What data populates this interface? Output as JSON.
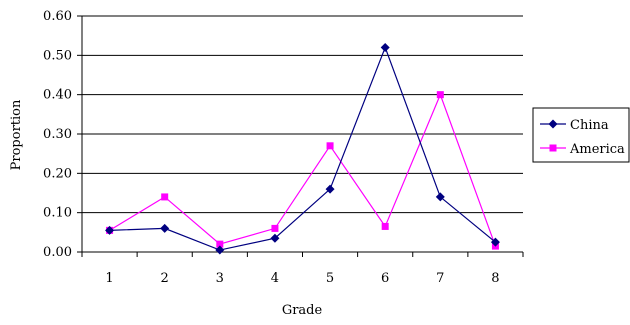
{
  "chart_data": {
    "type": "line",
    "title": "",
    "xlabel": "Grade",
    "ylabel": "Proportion",
    "categories": [
      "1",
      "2",
      "3",
      "4",
      "5",
      "6",
      "7",
      "8"
    ],
    "y_ticks": [
      "0.00",
      "0.10",
      "0.20",
      "0.30",
      "0.40",
      "0.50",
      "0.60"
    ],
    "ylim": [
      0,
      0.6
    ],
    "grid": "horizontal",
    "legend_position": "right",
    "series": [
      {
        "name": "China",
        "color": "#000080",
        "marker": "diamond",
        "values": [
          0.055,
          0.06,
          0.005,
          0.035,
          0.16,
          0.52,
          0.14,
          0.025
        ]
      },
      {
        "name": "America",
        "color": "#ff00ff",
        "marker": "square",
        "values": [
          0.055,
          0.14,
          0.02,
          0.06,
          0.27,
          0.065,
          0.4,
          0.015
        ]
      }
    ]
  }
}
